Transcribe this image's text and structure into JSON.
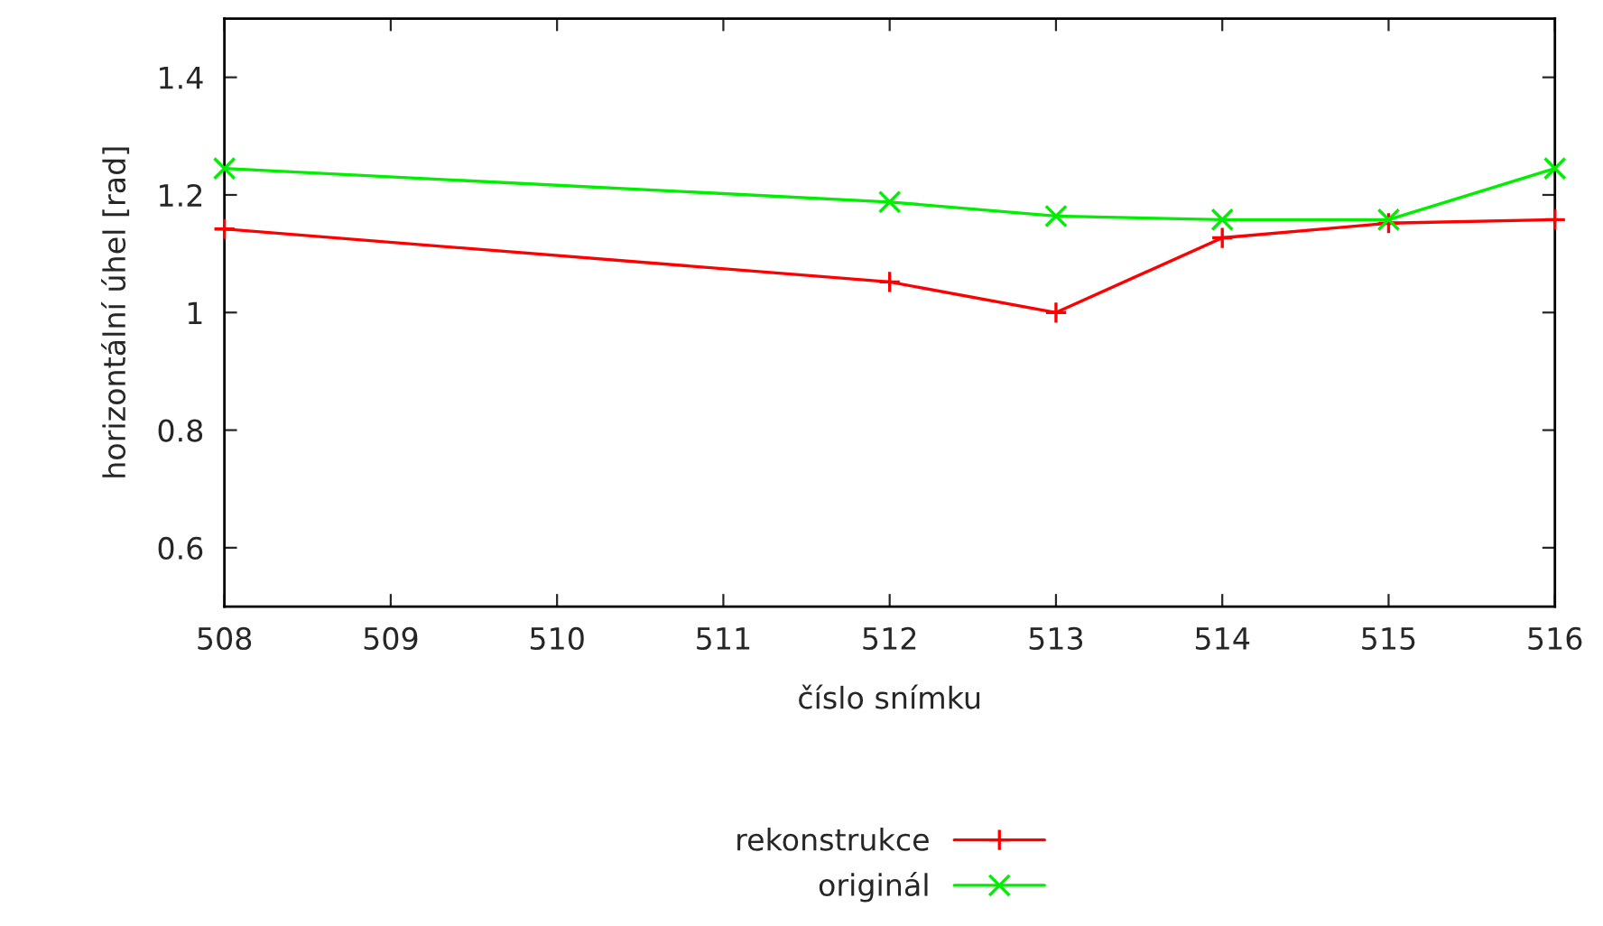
{
  "chart_data": {
    "type": "line",
    "xlabel": "číslo snímku",
    "ylabel": "horizontální úhel [rad]",
    "x": [
      508,
      512,
      513,
      514,
      515,
      516
    ],
    "series": [
      {
        "name": "rekonstrukce",
        "color": "#ff0000",
        "marker": "plus",
        "values": [
          1.142,
          1.052,
          1.0,
          1.127,
          1.152,
          1.158
        ]
      },
      {
        "name": "originál",
        "color": "#00ee00",
        "marker": "cross",
        "values": [
          1.245,
          1.188,
          1.164,
          1.158,
          1.158,
          1.245
        ]
      }
    ],
    "xlim": [
      508,
      516
    ],
    "xticks": [
      508,
      509,
      510,
      511,
      512,
      513,
      514,
      515,
      516
    ],
    "ylim": [
      0.5,
      1.5
    ],
    "yticks": [
      0.6,
      0.8,
      1,
      1.2,
      1.4
    ],
    "grid": false,
    "legend": "bottom",
    "line_style": "solid"
  }
}
